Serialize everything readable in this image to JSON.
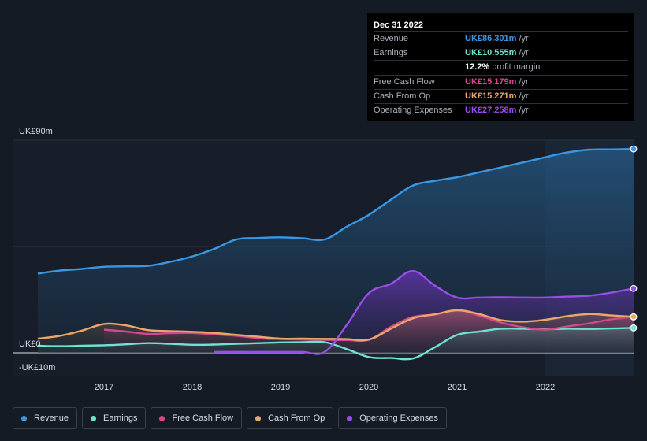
{
  "chart_data": {
    "type": "area",
    "title": "",
    "y_unit_labels": {
      "top": "UK£90m",
      "zero": "UK£0",
      "bottom": "-UK£10m"
    },
    "ylim": [
      -10,
      90
    ],
    "xlim": [
      2016.25,
      2023.0
    ],
    "x_ticks": [
      2017,
      2018,
      2019,
      2020,
      2021,
      2022
    ],
    "x_tick_labels": [
      "2017",
      "2018",
      "2019",
      "2020",
      "2021",
      "2022"
    ],
    "forecast_shade_start": 2022.0,
    "series": [
      {
        "name": "Revenue",
        "key": "revenue",
        "color": "#3a97e4",
        "points": [
          [
            2016.25,
            33.5
          ],
          [
            2016.5,
            34.8
          ],
          [
            2016.75,
            35.5
          ],
          [
            2017.0,
            36.4
          ],
          [
            2017.25,
            36.6
          ],
          [
            2017.5,
            36.8
          ],
          [
            2017.75,
            38.5
          ],
          [
            2018.0,
            40.8
          ],
          [
            2018.25,
            44.0
          ],
          [
            2018.5,
            48.0
          ],
          [
            2018.75,
            48.6
          ],
          [
            2019.0,
            48.9
          ],
          [
            2019.25,
            48.5
          ],
          [
            2019.5,
            48.0
          ],
          [
            2019.75,
            53.4
          ],
          [
            2020.0,
            58.4
          ],
          [
            2020.25,
            64.8
          ],
          [
            2020.5,
            70.8
          ],
          [
            2020.75,
            72.8
          ],
          [
            2021.0,
            74.3
          ],
          [
            2021.25,
            76.4
          ],
          [
            2021.5,
            78.5
          ],
          [
            2021.75,
            80.6
          ],
          [
            2022.0,
            82.8
          ],
          [
            2022.25,
            84.8
          ],
          [
            2022.5,
            86.0
          ],
          [
            2022.75,
            86.1
          ],
          [
            2023.0,
            86.301
          ]
        ]
      },
      {
        "name": "Earnings",
        "key": "earnings",
        "color": "#6fe3d1",
        "points": [
          [
            2016.25,
            3.0
          ],
          [
            2016.5,
            2.8
          ],
          [
            2016.75,
            3.0
          ],
          [
            2017.0,
            3.2
          ],
          [
            2017.25,
            3.6
          ],
          [
            2017.5,
            4.1
          ],
          [
            2017.75,
            3.8
          ],
          [
            2018.0,
            3.4
          ],
          [
            2018.25,
            3.5
          ],
          [
            2018.5,
            3.8
          ],
          [
            2018.75,
            4.1
          ],
          [
            2019.0,
            4.4
          ],
          [
            2019.25,
            4.5
          ],
          [
            2019.5,
            4.5
          ],
          [
            2019.75,
            1.6
          ],
          [
            2020.0,
            -1.8
          ],
          [
            2020.25,
            -2.2
          ],
          [
            2020.5,
            -2.4
          ],
          [
            2020.75,
            2.4
          ],
          [
            2021.0,
            7.6
          ],
          [
            2021.25,
            9.0
          ],
          [
            2021.5,
            10.2
          ],
          [
            2021.75,
            10.2
          ],
          [
            2022.0,
            10.0
          ],
          [
            2022.25,
            10.2
          ],
          [
            2022.5,
            10.1
          ],
          [
            2022.75,
            10.3
          ],
          [
            2023.0,
            10.555
          ]
        ]
      },
      {
        "name": "Free Cash Flow",
        "key": "fcf",
        "color": "#d4498a",
        "points": [
          [
            2017.0,
            9.8
          ],
          [
            2017.25,
            9.0
          ],
          [
            2017.5,
            8.0
          ],
          [
            2017.75,
            8.3
          ],
          [
            2018.0,
            8.4
          ],
          [
            2018.25,
            7.8
          ],
          [
            2018.5,
            7.2
          ],
          [
            2018.75,
            6.2
          ],
          [
            2019.0,
            5.8
          ],
          [
            2019.25,
            5.6
          ],
          [
            2019.5,
            5.5
          ],
          [
            2019.75,
            5.4
          ],
          [
            2020.0,
            5.5
          ],
          [
            2020.25,
            11.0
          ],
          [
            2020.5,
            15.2
          ],
          [
            2020.75,
            16.2
          ],
          [
            2021.0,
            18.0
          ],
          [
            2021.25,
            15.8
          ],
          [
            2021.5,
            12.8
          ],
          [
            2021.75,
            10.8
          ],
          [
            2022.0,
            9.8
          ],
          [
            2022.25,
            11.2
          ],
          [
            2022.5,
            12.5
          ],
          [
            2022.75,
            14.2
          ],
          [
            2023.0,
            15.179
          ]
        ]
      },
      {
        "name": "Cash From Op",
        "key": "cfo",
        "color": "#e9a86a",
        "points": [
          [
            2016.25,
            6.0
          ],
          [
            2016.5,
            7.2
          ],
          [
            2016.75,
            9.4
          ],
          [
            2017.0,
            12.2
          ],
          [
            2017.25,
            11.6
          ],
          [
            2017.5,
            9.6
          ],
          [
            2017.75,
            9.2
          ],
          [
            2018.0,
            8.9
          ],
          [
            2018.25,
            8.4
          ],
          [
            2018.5,
            7.6
          ],
          [
            2018.75,
            6.8
          ],
          [
            2019.0,
            6.0
          ],
          [
            2019.25,
            6.0
          ],
          [
            2019.5,
            5.9
          ],
          [
            2019.75,
            5.8
          ],
          [
            2020.0,
            5.6
          ],
          [
            2020.25,
            10.2
          ],
          [
            2020.5,
            14.6
          ],
          [
            2020.75,
            16.3
          ],
          [
            2021.0,
            18.0
          ],
          [
            2021.25,
            16.4
          ],
          [
            2021.5,
            13.8
          ],
          [
            2021.75,
            13.2
          ],
          [
            2022.0,
            14.0
          ],
          [
            2022.25,
            15.5
          ],
          [
            2022.5,
            16.4
          ],
          [
            2022.75,
            15.8
          ],
          [
            2023.0,
            15.271
          ]
        ]
      },
      {
        "name": "Operating Expenses",
        "key": "opex",
        "color": "#9a4ee8",
        "points": [
          [
            2018.25,
            0.4
          ],
          [
            2018.5,
            0.4
          ],
          [
            2018.75,
            0.4
          ],
          [
            2019.0,
            0.4
          ],
          [
            2019.25,
            0.4
          ],
          [
            2019.5,
            0.4
          ],
          [
            2019.75,
            11.8
          ],
          [
            2020.0,
            25.2
          ],
          [
            2020.25,
            29.2
          ],
          [
            2020.5,
            34.6
          ],
          [
            2020.75,
            28.4
          ],
          [
            2021.0,
            23.4
          ],
          [
            2021.25,
            23.4
          ],
          [
            2021.5,
            23.5
          ],
          [
            2021.75,
            23.4
          ],
          [
            2022.0,
            23.4
          ],
          [
            2022.25,
            23.8
          ],
          [
            2022.5,
            24.2
          ],
          [
            2022.75,
            25.5
          ],
          [
            2023.0,
            27.258
          ]
        ]
      }
    ]
  },
  "tooltip": {
    "date": "Dec 31 2022",
    "rows": [
      {
        "label": "Revenue",
        "value": "UK£86.301m",
        "unit": "/yr",
        "color": "#3a97e4"
      },
      {
        "label": "Earnings",
        "value": "UK£10.555m",
        "unit": "/yr",
        "color": "#6fe3d1"
      },
      {
        "label": "",
        "value": "12.2%",
        "unit": "profit margin",
        "color": "#ffffff"
      },
      {
        "label": "Free Cash Flow",
        "value": "UK£15.179m",
        "unit": "/yr",
        "color": "#d4498a"
      },
      {
        "label": "Cash From Op",
        "value": "UK£15.271m",
        "unit": "/yr",
        "color": "#e9a86a"
      },
      {
        "label": "Operating Expenses",
        "value": "UK£27.258m",
        "unit": "/yr",
        "color": "#9a4ee8"
      }
    ]
  },
  "legend": [
    {
      "label": "Revenue",
      "color": "#3a97e4"
    },
    {
      "label": "Earnings",
      "color": "#6fe3d1"
    },
    {
      "label": "Free Cash Flow",
      "color": "#d4498a"
    },
    {
      "label": "Cash From Op",
      "color": "#e9a86a"
    },
    {
      "label": "Operating Expenses",
      "color": "#9a4ee8"
    }
  ]
}
